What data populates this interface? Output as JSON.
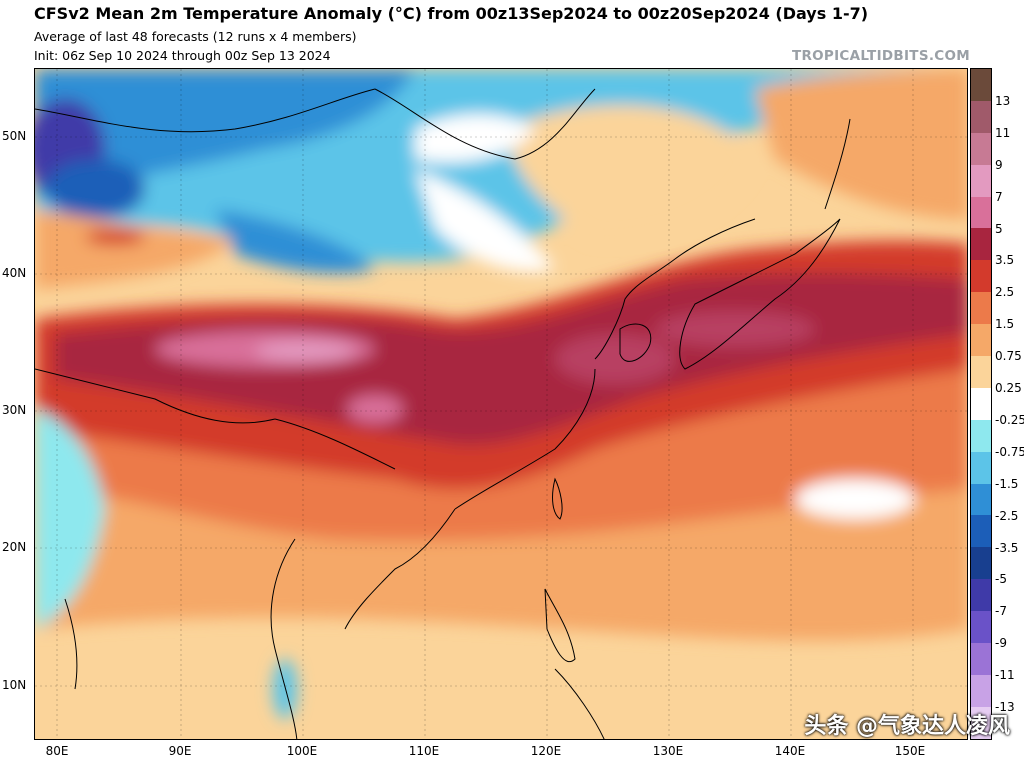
{
  "header": {
    "title": "CFSv2 Mean 2m Temperature Anomaly (°C) from 00z13Sep2024 to 00z20Sep2024 (Days 1-7)",
    "subtitle1": "Average of last 48 forecasts (12 runs x 4 members)",
    "subtitle2": "Init: 06z Sep 10 2024 through 00z Sep 13 2024",
    "brand": "TROPICALTIDBITS.COM"
  },
  "axes": {
    "lat_labels": [
      "50N",
      "40N",
      "30N",
      "20N",
      "10N"
    ],
    "lon_labels": [
      "80E",
      "90E",
      "100E",
      "110E",
      "120E",
      "130E",
      "140E",
      "150E"
    ]
  },
  "colorbar": {
    "labels": [
      "13",
      "11",
      "9",
      "7",
      "5",
      "3.5",
      "2.5",
      "1.5",
      "0.75",
      "0.25",
      "-0.25",
      "-0.75",
      "-1.5",
      "-2.5",
      "-3.5",
      "-5",
      "-7",
      "-9",
      "-11",
      "-13"
    ],
    "colors": [
      "#6b4a3a",
      "#a05a6a",
      "#c77a94",
      "#e39ac0",
      "#d9709a",
      "#a8253f",
      "#d33a2c",
      "#ec7a4a",
      "#f5a868",
      "#fbd49a",
      "#ffffff",
      "#8ee8ee",
      "#5cc4e8",
      "#2f8fd6",
      "#1c5eb8",
      "#183f8f",
      "#3f3aa8",
      "#6a52c8",
      "#9b73d6",
      "#c8a2e6",
      "#e6ccf2"
    ]
  },
  "watermark": "头条 @气象达人凌风"
}
